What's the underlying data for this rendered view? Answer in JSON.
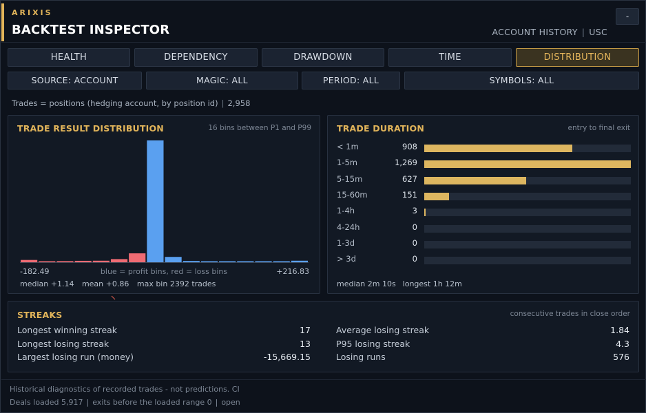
{
  "header": {
    "brand": "ARIXIS",
    "title": "BACKTEST INSPECTOR",
    "minimize_label": "-",
    "account_history": "ACCOUNT HISTORY",
    "currency": "USC",
    "separator": "|"
  },
  "tabs": [
    {
      "label": "HEALTH",
      "active": false
    },
    {
      "label": "DEPENDENCY",
      "active": false
    },
    {
      "label": "DRAWDOWN",
      "active": false
    },
    {
      "label": "TIME",
      "active": false
    },
    {
      "label": "DISTRIBUTION",
      "active": true
    }
  ],
  "filters": [
    {
      "label": "SOURCE: ACCOUNT"
    },
    {
      "label": "MAGIC: ALL"
    },
    {
      "label": "PERIOD: ALL"
    },
    {
      "label": "SYMBOLS: ALL"
    }
  ],
  "trades_info": {
    "text": "Trades = positions (hedging account, by position id)",
    "separator": "|",
    "count": "2,958"
  },
  "distribution": {
    "title": "TRADE RESULT DISTRIBUTION",
    "note": "16 bins between P1 and P99",
    "min_label": "-182.49",
    "max_label": "+216.83",
    "legend": "blue = profit bins, red = loss bins",
    "median": "median +1.14",
    "mean": "mean +0.86",
    "max_bin": "max bin 2392 trades",
    "colors": {
      "loss": "#ef6b73",
      "profit": "#5aa0f0",
      "baseline": "#3a4452"
    },
    "chart_data": {
      "type": "bar",
      "bins": 16,
      "x_range": [
        -182.49,
        216.83
      ],
      "values": [
        45,
        20,
        22,
        28,
        30,
        62,
        175,
        2392,
        105,
        25,
        18,
        15,
        14,
        8,
        4,
        30
      ],
      "kind": [
        "loss",
        "loss",
        "loss",
        "loss",
        "loss",
        "loss",
        "loss",
        "profit",
        "profit",
        "profit",
        "profit",
        "profit",
        "profit",
        "profit",
        "profit",
        "profit"
      ],
      "ylim": [
        0,
        2392
      ]
    }
  },
  "duration": {
    "title": "TRADE DURATION",
    "note": "entry to final exit",
    "max": 1269,
    "rows": [
      {
        "label": "< 1m",
        "count": "908",
        "value": 908
      },
      {
        "label": "1-5m",
        "count": "1,269",
        "value": 1269
      },
      {
        "label": "5-15m",
        "count": "627",
        "value": 627
      },
      {
        "label": "15-60m",
        "count": "151",
        "value": 151
      },
      {
        "label": "1-4h",
        "count": "3",
        "value": 3
      },
      {
        "label": "4-24h",
        "count": "0",
        "value": 0
      },
      {
        "label": "1-3d",
        "count": "0",
        "value": 0
      },
      {
        "label": "> 3d",
        "count": "0",
        "value": 0
      }
    ],
    "median": "median 2m 10s",
    "longest": "longest 1h 12m"
  },
  "streaks": {
    "title": "STREAKS",
    "note": "consecutive trades in close order",
    "left": [
      {
        "label": "Longest winning streak",
        "value": "17"
      },
      {
        "label": "Longest losing streak",
        "value": "13"
      },
      {
        "label": "Largest losing run (money)",
        "value": "-15,669.15"
      }
    ],
    "right": [
      {
        "label": "Average losing streak",
        "value": "1.84"
      },
      {
        "label": "P95 losing streak",
        "value": "4.3"
      },
      {
        "label": "Losing runs",
        "value": "576"
      }
    ]
  },
  "footer": {
    "line1": "Historical diagnostics of recorded trades - not predictions. CI",
    "deals": "Deals loaded 5,917",
    "exits": "exits before the loaded range 0",
    "status": "open",
    "separator": "|"
  }
}
